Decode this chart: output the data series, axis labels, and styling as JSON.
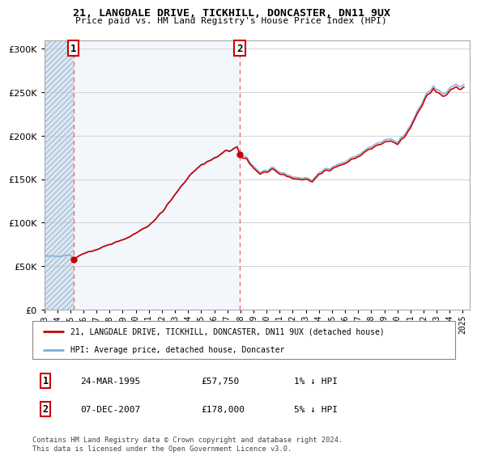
{
  "title_line1": "21, LANGDALE DRIVE, TICKHILL, DONCASTER, DN11 9UX",
  "title_line2": "Price paid vs. HM Land Registry's House Price Index (HPI)",
  "legend_label1": "21, LANGDALE DRIVE, TICKHILL, DONCASTER, DN11 9UX (detached house)",
  "legend_label2": "HPI: Average price, detached house, Doncaster",
  "annotation1_label": "1",
  "annotation1_date": "24-MAR-1995",
  "annotation1_price": "£57,750",
  "annotation1_hpi": "1% ↓ HPI",
  "annotation2_label": "2",
  "annotation2_date": "07-DEC-2007",
  "annotation2_price": "£178,000",
  "annotation2_hpi": "5% ↓ HPI",
  "footer": "Contains HM Land Registry data © Crown copyright and database right 2024.\nThis data is licensed under the Open Government Licence v3.0.",
  "sale1_year": 1995.23,
  "sale1_price": 57750,
  "sale2_year": 2007.93,
  "sale2_price": 178000,
  "hpi_color": "#7ab0d4",
  "price_color": "#cc0000",
  "dashed_color": "#e87070",
  "ylim_max": 310000,
  "ylim_min": 0,
  "xmin": 1993.0,
  "xmax": 2025.5
}
